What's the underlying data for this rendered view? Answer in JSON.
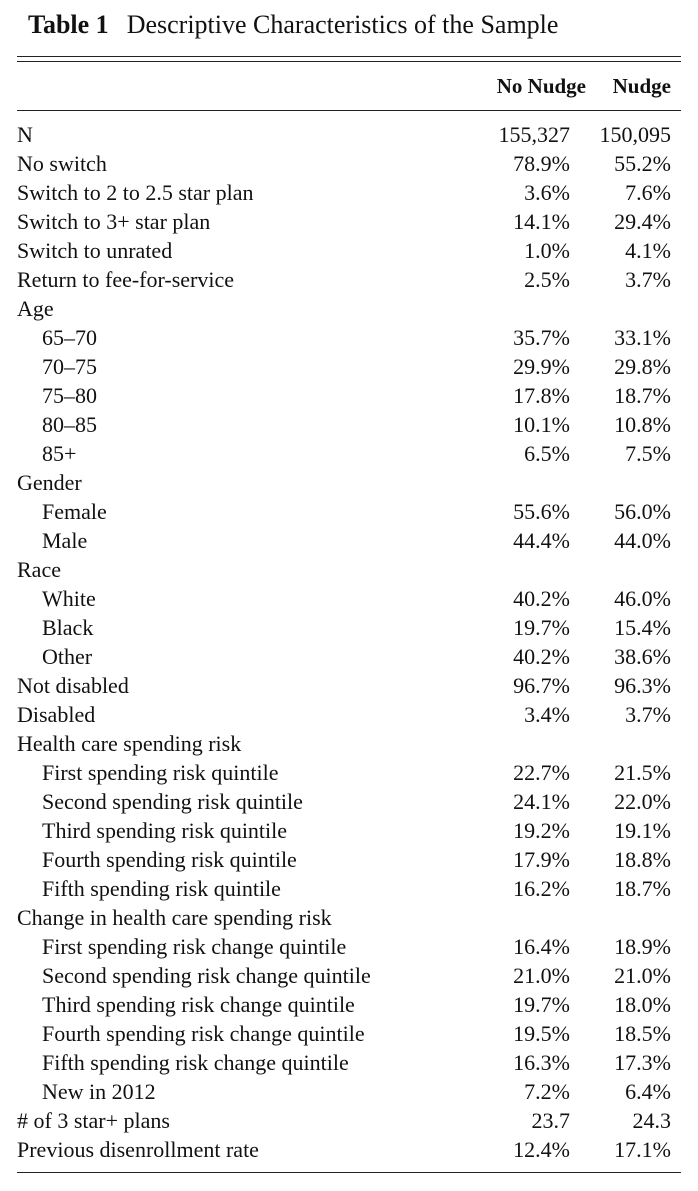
{
  "header": {
    "label": "Table 1",
    "title": "Descriptive Characteristics of the Sample"
  },
  "table": {
    "columns": [
      "No Nudge",
      "Nudge"
    ],
    "rows": [
      [
        "N",
        "155,327",
        "150,095"
      ],
      [
        "No switch",
        "78.9%",
        "55.2%"
      ],
      [
        "Switch to 2 to 2.5 star plan",
        "3.6%",
        "7.6%"
      ],
      [
        "Switch to 3+ star plan",
        "14.1%",
        "29.4%"
      ],
      [
        "Switch to unrated",
        "1.0%",
        "4.1%"
      ],
      [
        "Return to fee-for-service",
        "2.5%",
        "3.7%"
      ],
      {
        "label": "Age",
        "rows": [
          [
            "65–70",
            "35.7%",
            "33.1%"
          ],
          [
            "70–75",
            "29.9%",
            "29.8%"
          ],
          [
            "75–80",
            "17.8%",
            "18.7%"
          ],
          [
            "80–85",
            "10.1%",
            "10.8%"
          ],
          [
            "85+",
            "6.5%",
            "7.5%"
          ]
        ]
      },
      {
        "label": "Gender",
        "rows": [
          [
            "Female",
            "55.6%",
            "56.0%"
          ],
          [
            "Male",
            "44.4%",
            "44.0%"
          ]
        ]
      },
      {
        "label": "Race",
        "rows": [
          [
            "White",
            "40.2%",
            "46.0%"
          ],
          [
            "Black",
            "19.7%",
            "15.4%"
          ],
          [
            "Other",
            "40.2%",
            "38.6%"
          ]
        ]
      },
      [
        "Not disabled",
        "96.7%",
        "96.3%"
      ],
      [
        "Disabled",
        "3.4%",
        "3.7%"
      ],
      {
        "label": "Health care spending risk",
        "rows": [
          [
            "First spending risk quintile",
            "22.7%",
            "21.5%"
          ],
          [
            "Second spending risk quintile",
            "24.1%",
            "22.0%"
          ],
          [
            "Third spending risk quintile",
            "19.2%",
            "19.1%"
          ],
          [
            "Fourth spending risk quintile",
            "17.9%",
            "18.8%"
          ],
          [
            "Fifth spending risk quintile",
            "16.2%",
            "18.7%"
          ]
        ]
      },
      {
        "label": "Change in health care spending risk",
        "rows": [
          [
            "First spending risk change quintile",
            "16.4%",
            "18.9%"
          ],
          [
            "Second spending risk change quintile",
            "21.0%",
            "21.0%"
          ],
          [
            "Third spending risk change quintile",
            "19.7%",
            "18.0%"
          ],
          [
            "Fourth spending risk change quintile",
            "19.5%",
            "18.5%"
          ],
          [
            "Fifth spending risk change quintile",
            "16.3%",
            "17.3%"
          ],
          [
            "New in 2012",
            "7.2%",
            "6.4%"
          ]
        ]
      },
      [
        "# of 3 star+ plans",
        "23.7",
        "24.3"
      ],
      [
        "Previous disenrollment rate",
        "12.4%",
        "17.1%"
      ]
    ]
  }
}
